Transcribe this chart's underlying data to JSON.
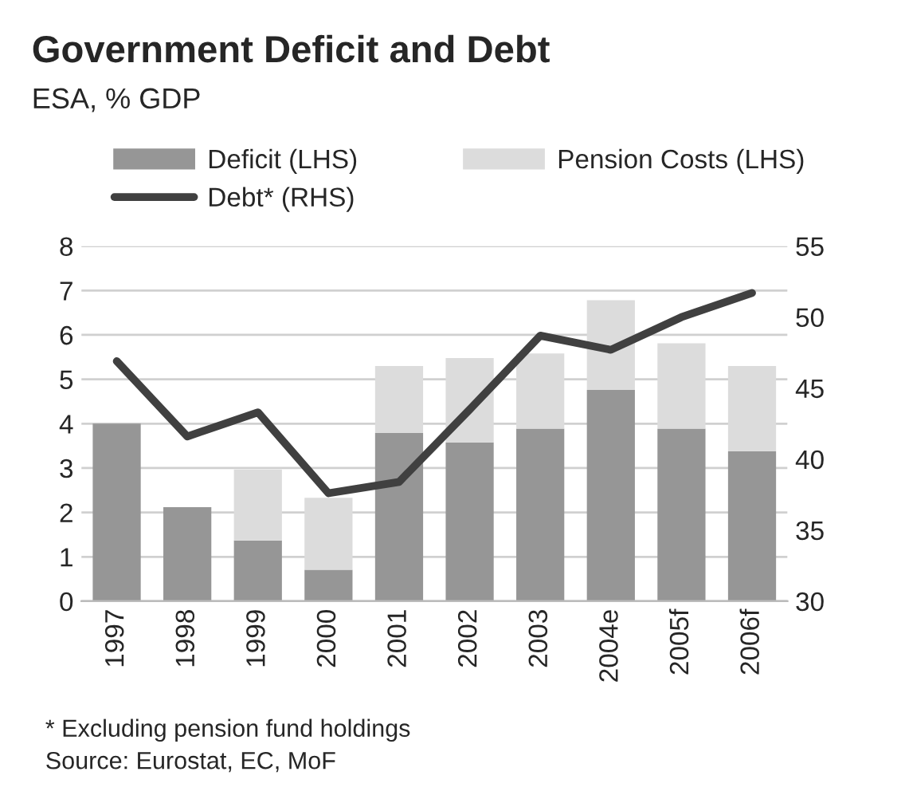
{
  "chart_data": {
    "type": "bar",
    "title": "Government Deficit and Debt",
    "subtitle": "ESA, % GDP",
    "categories": [
      "1997",
      "1998",
      "1999",
      "2000",
      "2001",
      "2002",
      "2003",
      "2004e",
      "2005f",
      "2006f"
    ],
    "stacked": true,
    "series": [
      {
        "name": "Deficit (LHS)",
        "color": "#969696",
        "values": [
          4.0,
          2.12,
          1.37,
          0.71,
          3.79,
          3.58,
          3.89,
          4.76,
          3.89,
          3.38
        ]
      },
      {
        "name": "Pension Costs (LHS)",
        "color": "#dcdcdc",
        "values": [
          null,
          null,
          1.6,
          1.62,
          1.51,
          1.9,
          1.69,
          2.02,
          1.92,
          1.92
        ]
      },
      {
        "name": "Debt* (RHS)",
        "type": "line",
        "axis": "y2",
        "color": "#404040",
        "values": [
          46.9,
          41.6,
          43.3,
          37.6,
          38.4,
          43.5,
          48.7,
          47.7,
          50.0,
          51.7
        ]
      }
    ],
    "ylim": [
      0,
      8
    ],
    "yticks": [
      0,
      1,
      2,
      3,
      4,
      5,
      6,
      7,
      8
    ],
    "y2lim": [
      30,
      55
    ],
    "y2ticks": [
      30,
      35,
      40,
      45,
      50,
      55
    ],
    "grid": "y",
    "legend": "top",
    "annotations": [
      "* Excluding pension fund holdings",
      "Source: Eurostat, EC, MoF"
    ]
  }
}
